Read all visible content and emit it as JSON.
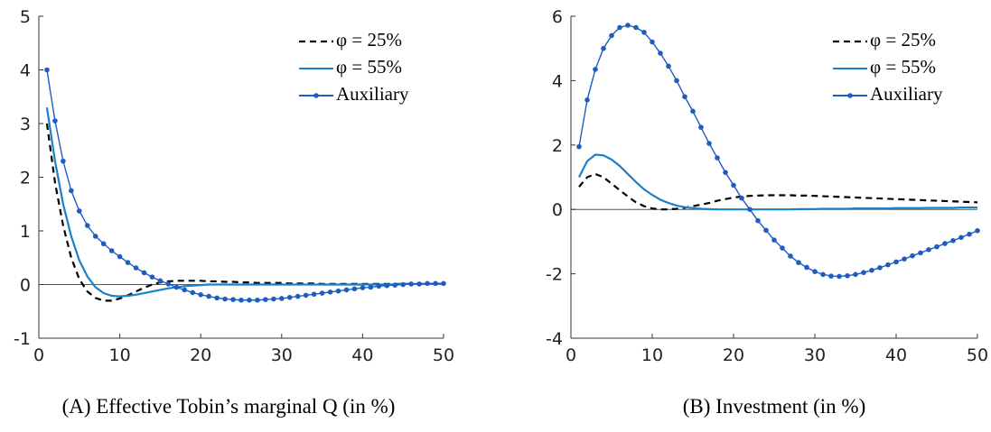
{
  "chart_data": [
    {
      "type": "line",
      "caption": "(A) Effective Tobin’s marginal Q (in %)",
      "x": [
        1,
        2,
        3,
        4,
        5,
        6,
        7,
        8,
        9,
        10,
        11,
        12,
        13,
        14,
        15,
        16,
        17,
        18,
        19,
        20,
        21,
        22,
        23,
        24,
        25,
        26,
        27,
        28,
        29,
        30,
        31,
        32,
        33,
        34,
        35,
        36,
        37,
        38,
        39,
        40,
        41,
        42,
        43,
        44,
        45,
        46,
        47,
        48,
        49,
        50
      ],
      "xlim": [
        0,
        50
      ],
      "xticks": [
        0,
        10,
        20,
        30,
        40,
        50
      ],
      "ylim": [
        -1,
        5
      ],
      "yticks": [
        -1,
        0,
        1,
        2,
        3,
        4,
        5
      ],
      "legend": "upper right",
      "series": [
        {
          "name": "φ = 25%",
          "color": "#000000",
          "style": "dashed",
          "marker": false,
          "values": [
            3.0,
            1.9,
            1.1,
            0.5,
            0.1,
            -0.13,
            -0.25,
            -0.3,
            -0.3,
            -0.26,
            -0.2,
            -0.13,
            -0.06,
            0.0,
            0.04,
            0.06,
            0.07,
            0.07,
            0.07,
            0.07,
            0.06,
            0.06,
            0.05,
            0.05,
            0.04,
            0.04,
            0.03,
            0.03,
            0.03,
            0.03,
            0.02,
            0.02,
            0.02,
            0.02,
            0.01,
            0.01,
            0.01,
            0.01,
            0.01,
            0.01,
            0.01,
            0.01,
            0.01,
            0.01,
            0.01,
            0.01,
            0.01,
            0.01,
            0.01,
            0.01
          ]
        },
        {
          "name": "φ = 55%",
          "color": "#1a80c8",
          "style": "solid",
          "marker": false,
          "values": [
            3.3,
            2.3,
            1.5,
            0.9,
            0.45,
            0.15,
            -0.05,
            -0.16,
            -0.21,
            -0.22,
            -0.21,
            -0.19,
            -0.16,
            -0.13,
            -0.1,
            -0.07,
            -0.05,
            -0.03,
            -0.02,
            -0.01,
            0.0,
            0.0,
            0.0,
            0.0,
            0.0,
            0.0,
            0.0,
            0.0,
            0.0,
            0.0,
            0.0,
            0.0,
            0.0,
            0.0,
            0.0,
            0.0,
            0.0,
            0.0,
            0.0,
            0.0,
            0.0,
            0.0,
            0.0,
            0.0,
            0.01,
            0.01,
            0.01,
            0.01,
            0.01,
            0.01
          ]
        },
        {
          "name": "Auxiliary",
          "color": "#1f5cbf",
          "style": "solid",
          "marker": true,
          "values": [
            4.0,
            3.05,
            2.3,
            1.75,
            1.37,
            1.1,
            0.9,
            0.76,
            0.63,
            0.52,
            0.41,
            0.31,
            0.22,
            0.14,
            0.07,
            0.01,
            -0.05,
            -0.1,
            -0.15,
            -0.19,
            -0.22,
            -0.25,
            -0.27,
            -0.28,
            -0.29,
            -0.29,
            -0.29,
            -0.28,
            -0.27,
            -0.26,
            -0.24,
            -0.22,
            -0.2,
            -0.18,
            -0.16,
            -0.14,
            -0.12,
            -0.1,
            -0.08,
            -0.06,
            -0.05,
            -0.03,
            -0.02,
            -0.01,
            0.0,
            0.01,
            0.01,
            0.02,
            0.02,
            0.02
          ]
        }
      ]
    },
    {
      "type": "line",
      "caption": "(B) Investment (in %)",
      "x": [
        1,
        2,
        3,
        4,
        5,
        6,
        7,
        8,
        9,
        10,
        11,
        12,
        13,
        14,
        15,
        16,
        17,
        18,
        19,
        20,
        21,
        22,
        23,
        24,
        25,
        26,
        27,
        28,
        29,
        30,
        31,
        32,
        33,
        34,
        35,
        36,
        37,
        38,
        39,
        40,
        41,
        42,
        43,
        44,
        45,
        46,
        47,
        48,
        49,
        50
      ],
      "xlim": [
        0,
        50
      ],
      "xticks": [
        0,
        10,
        20,
        30,
        40,
        50
      ],
      "ylim": [
        -4,
        6
      ],
      "yticks": [
        -4,
        -2,
        0,
        2,
        4,
        6
      ],
      "legend": "upper right",
      "series": [
        {
          "name": "φ = 25%",
          "color": "#000000",
          "style": "dashed",
          "marker": false,
          "values": [
            0.7,
            1.0,
            1.1,
            1.0,
            0.8,
            0.6,
            0.4,
            0.22,
            0.1,
            0.03,
            0.0,
            0.0,
            0.02,
            0.05,
            0.1,
            0.15,
            0.2,
            0.27,
            0.32,
            0.37,
            0.4,
            0.42,
            0.43,
            0.44,
            0.44,
            0.44,
            0.44,
            0.43,
            0.43,
            0.42,
            0.41,
            0.4,
            0.39,
            0.38,
            0.37,
            0.36,
            0.35,
            0.34,
            0.33,
            0.32,
            0.31,
            0.3,
            0.29,
            0.28,
            0.27,
            0.26,
            0.25,
            0.24,
            0.23,
            0.22
          ]
        },
        {
          "name": "φ = 55%",
          "color": "#1a80c8",
          "style": "solid",
          "marker": false,
          "values": [
            1.0,
            1.5,
            1.7,
            1.68,
            1.55,
            1.35,
            1.1,
            0.85,
            0.62,
            0.45,
            0.3,
            0.2,
            0.12,
            0.07,
            0.04,
            0.02,
            0.01,
            0.0,
            0.0,
            0.0,
            0.0,
            0.0,
            0.0,
            0.0,
            0.0,
            0.0,
            0.0,
            0.01,
            0.01,
            0.01,
            0.02,
            0.02,
            0.02,
            0.02,
            0.03,
            0.03,
            0.03,
            0.03,
            0.03,
            0.04,
            0.04,
            0.04,
            0.04,
            0.05,
            0.05,
            0.05,
            0.05,
            0.06,
            0.06,
            0.06
          ]
        },
        {
          "name": "Auxiliary",
          "color": "#1f5cbf",
          "style": "solid",
          "marker": true,
          "values": [
            1.95,
            3.4,
            4.35,
            5.0,
            5.4,
            5.65,
            5.72,
            5.65,
            5.5,
            5.2,
            4.85,
            4.45,
            4.0,
            3.5,
            3.05,
            2.55,
            2.05,
            1.6,
            1.15,
            0.75,
            0.35,
            0.0,
            -0.35,
            -0.65,
            -0.95,
            -1.2,
            -1.45,
            -1.65,
            -1.8,
            -1.93,
            -2.02,
            -2.07,
            -2.08,
            -2.06,
            -2.02,
            -1.96,
            -1.89,
            -1.81,
            -1.72,
            -1.63,
            -1.54,
            -1.44,
            -1.35,
            -1.25,
            -1.16,
            -1.06,
            -0.97,
            -0.87,
            -0.77,
            -0.66
          ]
        }
      ]
    }
  ]
}
